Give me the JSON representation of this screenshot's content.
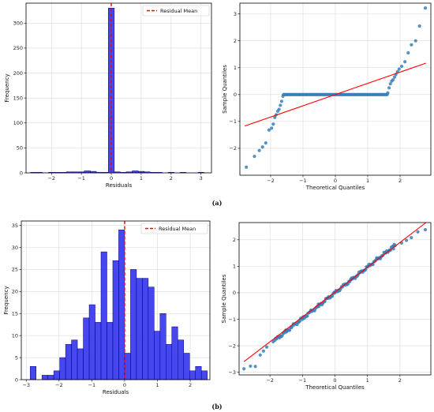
{
  "captions": {
    "a": "(a)",
    "b": "(b)"
  },
  "colors": {
    "bar": "#3333ee",
    "bar_edge": "#000080",
    "mean": "#ff0000",
    "qq_point": "#3a7fb8",
    "qq_line": "#ff0000",
    "grid": "#d9d9d9"
  },
  "chart_data": [
    {
      "type": "bar",
      "panel": "a-histogram",
      "xlabel": "Residuals",
      "ylabel": "Frequency",
      "xlim": [
        -2.85,
        3.35
      ],
      "ylim": [
        0,
        340
      ],
      "xticks": [
        -2,
        -1,
        0,
        1,
        2,
        3
      ],
      "yticks": [
        0,
        50,
        100,
        150,
        200,
        250,
        300
      ],
      "grid": true,
      "legend_placement": "top-right",
      "mean_line": {
        "label": "Residual Mean",
        "x": 0.0
      },
      "bin_width": 0.2,
      "bins": [
        {
          "x0": -2.7,
          "count": 1
        },
        {
          "x0": -2.5,
          "count": 1
        },
        {
          "x0": -2.1,
          "count": 1
        },
        {
          "x0": -1.9,
          "count": 1
        },
        {
          "x0": -1.7,
          "count": 1
        },
        {
          "x0": -1.5,
          "count": 2
        },
        {
          "x0": -1.3,
          "count": 2
        },
        {
          "x0": -1.1,
          "count": 2
        },
        {
          "x0": -0.9,
          "count": 4
        },
        {
          "x0": -0.7,
          "count": 3
        },
        {
          "x0": -0.5,
          "count": 1
        },
        {
          "x0": -0.3,
          "count": 1
        },
        {
          "x0": -0.1,
          "count": 330
        },
        {
          "x0": 0.1,
          "count": 2
        },
        {
          "x0": 0.3,
          "count": 1
        },
        {
          "x0": 0.5,
          "count": 2
        },
        {
          "x0": 0.7,
          "count": 4
        },
        {
          "x0": 0.9,
          "count": 3
        },
        {
          "x0": 1.1,
          "count": 2
        },
        {
          "x0": 1.3,
          "count": 1
        },
        {
          "x0": 1.5,
          "count": 1
        },
        {
          "x0": 1.9,
          "count": 1
        },
        {
          "x0": 2.3,
          "count": 1
        },
        {
          "x0": 2.9,
          "count": 1
        }
      ]
    },
    {
      "type": "scatter",
      "panel": "a-qqplot",
      "xlabel": "Theoretical Quantiles",
      "ylabel": "Sample Quantiles",
      "xlim": [
        -2.95,
        2.95
      ],
      "ylim": [
        -3.0,
        3.4
      ],
      "xticks": [
        -2,
        -1,
        0,
        1,
        2
      ],
      "yticks": [
        -2,
        -1,
        0,
        1,
        2,
        3
      ],
      "grid": true,
      "reference_line": [
        [
          -2.8,
          -1.17
        ],
        [
          2.8,
          1.17
        ]
      ],
      "points": [
        [
          -2.75,
          -2.7
        ],
        [
          -2.5,
          -2.3
        ],
        [
          -2.35,
          -2.08
        ],
        [
          -2.25,
          -1.95
        ],
        [
          -2.15,
          -1.8
        ],
        [
          -2.05,
          -1.32
        ],
        [
          -1.97,
          -1.25
        ],
        [
          -1.92,
          -1.1
        ],
        [
          -1.87,
          -0.85
        ],
        [
          -1.83,
          -0.75
        ],
        [
          -1.78,
          -0.62
        ],
        [
          -1.74,
          -0.55
        ],
        [
          -1.7,
          -0.4
        ],
        [
          -1.66,
          -0.25
        ],
        [
          -1.62,
          -0.06
        ],
        [
          1.62,
          0.06
        ],
        [
          1.66,
          0.25
        ],
        [
          1.7,
          0.4
        ],
        [
          1.74,
          0.5
        ],
        [
          1.78,
          0.55
        ],
        [
          1.83,
          0.65
        ],
        [
          1.87,
          0.75
        ],
        [
          1.92,
          0.85
        ],
        [
          1.97,
          0.95
        ],
        [
          2.05,
          1.05
        ],
        [
          2.15,
          1.22
        ],
        [
          2.25,
          1.55
        ],
        [
          2.35,
          1.85
        ],
        [
          2.48,
          2.0
        ],
        [
          2.6,
          2.55
        ],
        [
          2.78,
          3.22
        ]
      ],
      "flat_segment": {
        "x_from": -1.6,
        "x_to": 1.6,
        "y": 0.0
      }
    },
    {
      "type": "bar",
      "panel": "b-histogram",
      "xlabel": "Residuals",
      "ylabel": "Frequency",
      "xlim": [
        -3.15,
        2.6
      ],
      "ylim": [
        0,
        36
      ],
      "xticks": [
        -3,
        -2,
        -1,
        0,
        1,
        2
      ],
      "yticks": [
        0,
        5,
        10,
        15,
        20,
        25,
        30,
        35
      ],
      "grid": true,
      "legend_placement": "top-right",
      "mean_line": {
        "label": "Residual Mean",
        "x": 0.0
      },
      "bin_width": 0.18,
      "bins": [
        {
          "x0": -2.88,
          "count": 3
        },
        {
          "x0": -2.52,
          "count": 1
        },
        {
          "x0": -2.34,
          "count": 1
        },
        {
          "x0": -2.16,
          "count": 2
        },
        {
          "x0": -1.98,
          "count": 5
        },
        {
          "x0": -1.8,
          "count": 8
        },
        {
          "x0": -1.62,
          "count": 9
        },
        {
          "x0": -1.44,
          "count": 7
        },
        {
          "x0": -1.26,
          "count": 14
        },
        {
          "x0": -1.08,
          "count": 17
        },
        {
          "x0": -0.9,
          "count": 13
        },
        {
          "x0": -0.72,
          "count": 29
        },
        {
          "x0": -0.54,
          "count": 13
        },
        {
          "x0": -0.36,
          "count": 27
        },
        {
          "x0": -0.18,
          "count": 34
        },
        {
          "x0": 0.0,
          "count": 6
        },
        {
          "x0": 0.18,
          "count": 25
        },
        {
          "x0": 0.36,
          "count": 23
        },
        {
          "x0": 0.54,
          "count": 23
        },
        {
          "x0": 0.72,
          "count": 21
        },
        {
          "x0": 0.9,
          "count": 11
        },
        {
          "x0": 1.08,
          "count": 15
        },
        {
          "x0": 1.26,
          "count": 8
        },
        {
          "x0": 1.44,
          "count": 12
        },
        {
          "x0": 1.62,
          "count": 9
        },
        {
          "x0": 1.8,
          "count": 6
        },
        {
          "x0": 1.98,
          "count": 2
        },
        {
          "x0": 2.16,
          "count": 3
        },
        {
          "x0": 2.34,
          "count": 2
        }
      ]
    },
    {
      "type": "scatter",
      "panel": "b-qqplot",
      "xlabel": "Theoretical Quantiles",
      "ylabel": "Sample Quantiles",
      "xlim": [
        -2.95,
        2.95
      ],
      "ylim": [
        -3.1,
        2.65
      ],
      "xticks": [
        -2,
        -1,
        0,
        1,
        2
      ],
      "yticks": [
        -3,
        -2,
        -1,
        0,
        1,
        2
      ],
      "grid": true,
      "reference_line": [
        [
          -2.8,
          -2.6
        ],
        [
          2.8,
          2.65
        ]
      ],
      "points": [
        [
          -2.8,
          -2.87
        ],
        [
          -2.6,
          -2.77
        ],
        [
          -2.45,
          -2.78
        ],
        [
          -2.3,
          -2.35
        ],
        [
          -2.2,
          -2.2
        ],
        [
          -2.1,
          -2.05
        ],
        [
          -1.9,
          -1.85
        ],
        [
          -1.5,
          -1.48
        ],
        [
          -1.0,
          -1.0
        ],
        [
          -0.5,
          -0.52
        ],
        [
          0.0,
          0.0
        ],
        [
          0.5,
          0.5
        ],
        [
          1.0,
          0.98
        ],
        [
          1.3,
          1.3
        ],
        [
          1.55,
          1.5
        ],
        [
          1.8,
          1.66
        ],
        [
          2.05,
          1.88
        ],
        [
          2.2,
          1.98
        ],
        [
          2.35,
          2.08
        ],
        [
          2.55,
          2.3
        ],
        [
          2.78,
          2.38
        ]
      ],
      "dense_segment": {
        "x_from": -1.85,
        "x_to": 1.85
      }
    }
  ]
}
